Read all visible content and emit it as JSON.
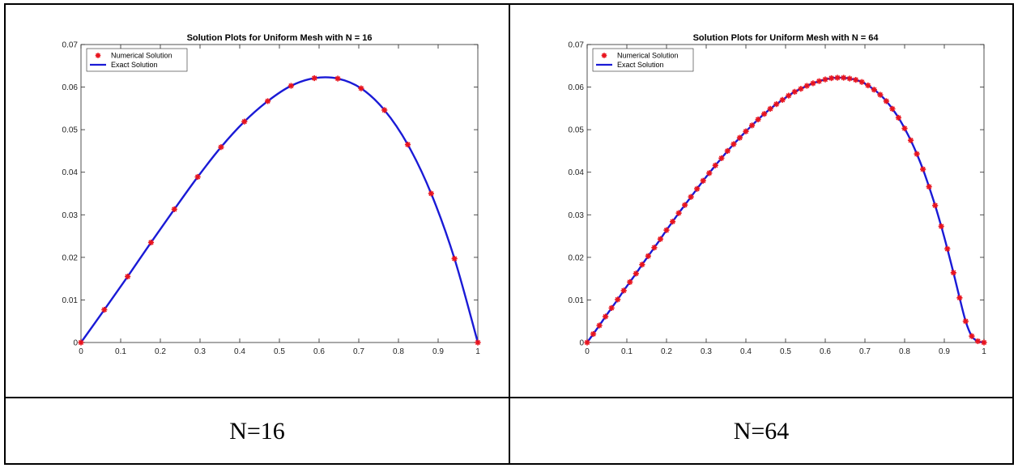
{
  "chart_data": [
    {
      "type": "line",
      "title": "Solution Plots for Uniform Mesh with N = 16",
      "xlim": [
        0,
        1
      ],
      "ylim": [
        0,
        0.07
      ],
      "x_ticks": [
        "0",
        "0.1",
        "0.2",
        "0.3",
        "0.4",
        "0.5",
        "0.6",
        "0.7",
        "0.8",
        "0.9",
        "1"
      ],
      "y_ticks": [
        "0",
        "0.01",
        "0.02",
        "0.03",
        "0.04",
        "0.05",
        "0.06",
        "0.07"
      ],
      "legend": {
        "position": "top-left",
        "entries": [
          "Numerical Solution",
          "Exact Solution"
        ]
      },
      "series": [
        {
          "name": "Numerical Solution",
          "color": "#e8141e",
          "marker": "asterisk",
          "x": [
            0,
            0.0588,
            0.1176,
            0.1765,
            0.2353,
            0.2941,
            0.3529,
            0.4118,
            0.4706,
            0.5294,
            0.5882,
            0.6471,
            0.7059,
            0.7647,
            0.8235,
            0.8824,
            0.9412,
            1
          ],
          "y": [
            0,
            0.0077,
            0.0155,
            0.0235,
            0.0313,
            0.0389,
            0.0459,
            0.0519,
            0.0567,
            0.0603,
            0.0621,
            0.062,
            0.0597,
            0.0546,
            0.0465,
            0.035,
            0.0197,
            0
          ]
        },
        {
          "name": "Exact Solution",
          "color": "#1a1ad6",
          "x": [],
          "y": []
        }
      ]
    },
    {
      "type": "line",
      "title": "Solution Plots for Uniform Mesh with N = 64",
      "xlim": [
        0,
        1
      ],
      "ylim": [
        0,
        0.07
      ],
      "x_ticks": [
        "0",
        "0.1",
        "0.2",
        "0.3",
        "0.4",
        "0.5",
        "0.6",
        "0.7",
        "0.8",
        "0.9",
        "1"
      ],
      "y_ticks": [
        "0",
        "0.01",
        "0.02",
        "0.03",
        "0.04",
        "0.05",
        "0.06",
        "0.07"
      ],
      "legend": {
        "position": "top-left",
        "entries": [
          "Numerical Solution",
          "Exact Solution"
        ]
      },
      "series": [
        {
          "name": "Numerical Solution",
          "color": "#e8141e",
          "marker": "asterisk",
          "x": [
            0,
            0.0154,
            0.0308,
            0.0462,
            0.0615,
            0.0769,
            0.0923,
            0.1077,
            0.1231,
            0.1385,
            0.1538,
            0.1692,
            0.1846,
            0.2,
            0.2154,
            0.2308,
            0.2462,
            0.2615,
            0.2769,
            0.2923,
            0.3077,
            0.3231,
            0.3385,
            0.3538,
            0.3692,
            0.3846,
            0.4,
            0.4154,
            0.4308,
            0.4462,
            0.4615,
            0.4769,
            0.4923,
            0.5077,
            0.5231,
            0.5385,
            0.5538,
            0.5692,
            0.5846,
            0.6,
            0.6154,
            0.6308,
            0.6462,
            0.6615,
            0.6769,
            0.6923,
            0.7077,
            0.7231,
            0.7385,
            0.7538,
            0.7692,
            0.7846,
            0.8,
            0.8154,
            0.8308,
            0.8462,
            0.8615,
            0.8769,
            0.8923,
            0.9077,
            0.9231,
            0.9385,
            0.9538,
            0.9692,
            0.9846,
            1
          ],
          "y": [
            0,
            0.002,
            0.004,
            0.0061,
            0.0081,
            0.0101,
            0.0122,
            0.0142,
            0.0162,
            0.0183,
            0.0203,
            0.0223,
            0.0243,
            0.0264,
            0.0284,
            0.0304,
            0.0323,
            0.0342,
            0.0361,
            0.038,
            0.0398,
            0.0416,
            0.0433,
            0.045,
            0.0466,
            0.0481,
            0.0496,
            0.051,
            0.0524,
            0.0537,
            0.0549,
            0.056,
            0.057,
            0.058,
            0.0589,
            0.0596,
            0.0603,
            0.0609,
            0.0614,
            0.0618,
            0.0621,
            0.0622,
            0.0622,
            0.062,
            0.0617,
            0.0612,
            0.0604,
            0.0594,
            0.0582,
            0.0567,
            0.0549,
            0.0528,
            0.0503,
            0.0475,
            0.0443,
            0.0407,
            0.0366,
            0.0322,
            0.0273,
            0.022,
            0.0164,
            0.0105,
            0.005,
            0.0015,
            0.0003,
            0
          ]
        },
        {
          "name": "Exact Solution",
          "color": "#1a1ad6",
          "x": [],
          "y": []
        }
      ]
    }
  ],
  "captions": [
    "N=16",
    "N=64"
  ]
}
